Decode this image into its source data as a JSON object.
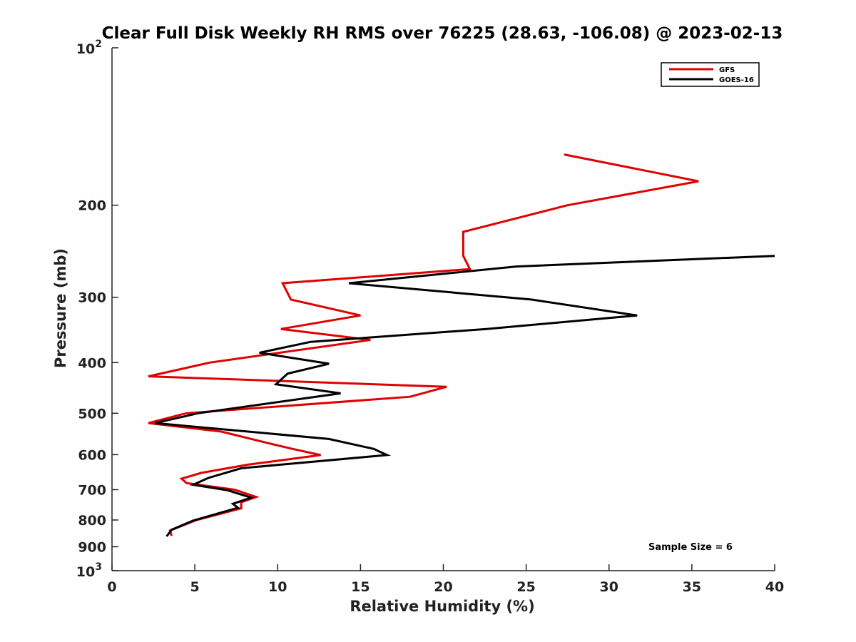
{
  "chart_data": {
    "type": "line",
    "title": "Clear Full Disk Weekly RH RMS over 76225 (28.63, -106.08) @ 2023-02-13",
    "xlabel": "Relative Humidity (%)",
    "ylabel": "Pressure (mb)",
    "xlim": [
      0,
      40
    ],
    "ylim": [
      100,
      1000
    ],
    "y_scale": "log",
    "y_reversed": true,
    "x_ticks": [
      0,
      5,
      10,
      15,
      20,
      25,
      30,
      35,
      40
    ],
    "y_ticks": [
      200,
      300,
      400,
      500,
      600,
      700,
      800,
      900
    ],
    "y_extreme_ticks": [
      {
        "value": 100,
        "base": "10",
        "exp": "2"
      },
      {
        "value": 1000,
        "base": "10",
        "exp": "3"
      }
    ],
    "grid": false,
    "legend_position": "top-right",
    "annotation": "Sample Size = 6",
    "series": [
      {
        "name": "GFS",
        "color": "#e00000",
        "points": [
          {
            "x": 27.3,
            "p": 160
          },
          {
            "x": 35.4,
            "p": 180
          },
          {
            "x": 27.5,
            "p": 200
          },
          {
            "x": 21.2,
            "p": 225
          },
          {
            "x": 21.2,
            "p": 250
          },
          {
            "x": 21.6,
            "p": 265
          },
          {
            "x": 10.3,
            "p": 282
          },
          {
            "x": 10.8,
            "p": 303
          },
          {
            "x": 15.0,
            "p": 325
          },
          {
            "x": 10.2,
            "p": 345
          },
          {
            "x": 15.6,
            "p": 362
          },
          {
            "x": 5.9,
            "p": 400
          },
          {
            "x": 2.2,
            "p": 425
          },
          {
            "x": 20.2,
            "p": 445
          },
          {
            "x": 18.0,
            "p": 465
          },
          {
            "x": 4.5,
            "p": 500
          },
          {
            "x": 2.2,
            "p": 522
          },
          {
            "x": 6.6,
            "p": 542
          },
          {
            "x": 9.4,
            "p": 570
          },
          {
            "x": 10.9,
            "p": 585
          },
          {
            "x": 12.6,
            "p": 601
          },
          {
            "x": 8.2,
            "p": 627
          },
          {
            "x": 5.4,
            "p": 650
          },
          {
            "x": 4.2,
            "p": 667
          },
          {
            "x": 4.5,
            "p": 680
          },
          {
            "x": 7.4,
            "p": 700
          },
          {
            "x": 8.7,
            "p": 723
          },
          {
            "x": 7.8,
            "p": 740
          },
          {
            "x": 7.8,
            "p": 760
          },
          {
            "x": 5.1,
            "p": 800
          },
          {
            "x": 3.5,
            "p": 838
          },
          {
            "x": 3.6,
            "p": 858
          }
        ]
      },
      {
        "name": "GOES-16",
        "color": "#000000",
        "points": [
          {
            "x": 40.0,
            "p": 250
          },
          {
            "x": 24.4,
            "p": 262
          },
          {
            "x": 14.3,
            "p": 282
          },
          {
            "x": 25.3,
            "p": 303
          },
          {
            "x": 31.7,
            "p": 325
          },
          {
            "x": 22.6,
            "p": 345
          },
          {
            "x": 12.0,
            "p": 365
          },
          {
            "x": 8.9,
            "p": 383
          },
          {
            "x": 13.1,
            "p": 402
          },
          {
            "x": 10.6,
            "p": 420
          },
          {
            "x": 9.9,
            "p": 440
          },
          {
            "x": 13.8,
            "p": 458
          },
          {
            "x": 5.2,
            "p": 500
          },
          {
            "x": 2.6,
            "p": 522
          },
          {
            "x": 13.1,
            "p": 560
          },
          {
            "x": 15.8,
            "p": 585
          },
          {
            "x": 16.6,
            "p": 601
          },
          {
            "x": 7.8,
            "p": 637
          },
          {
            "x": 5.8,
            "p": 665
          },
          {
            "x": 4.9,
            "p": 685
          },
          {
            "x": 7.0,
            "p": 702
          },
          {
            "x": 8.4,
            "p": 725
          },
          {
            "x": 7.3,
            "p": 745
          },
          {
            "x": 7.6,
            "p": 758
          },
          {
            "x": 4.9,
            "p": 802
          },
          {
            "x": 3.6,
            "p": 835
          },
          {
            "x": 3.3,
            "p": 860
          }
        ]
      }
    ]
  }
}
